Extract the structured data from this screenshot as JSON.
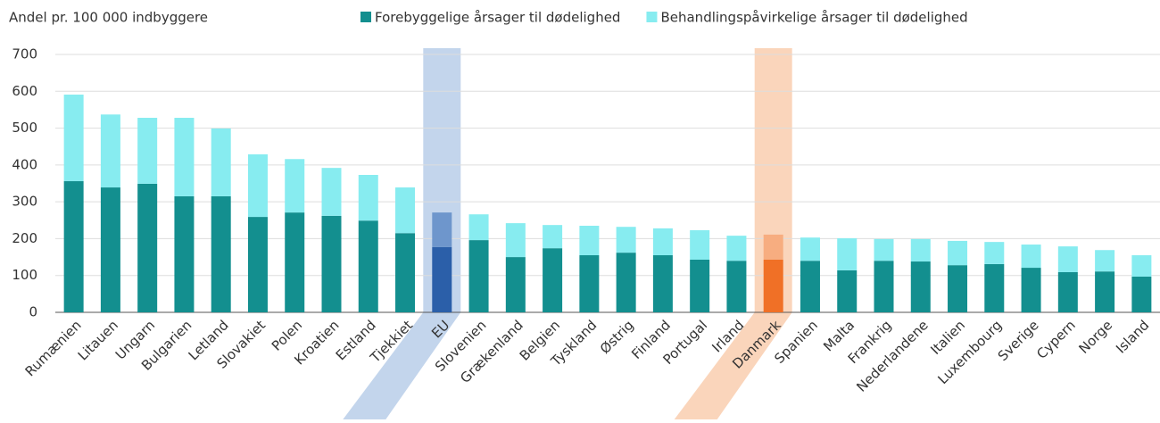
{
  "chart_data": {
    "type": "stacked-bar",
    "y_label": "Andel pr. 100 000 indbyggere",
    "categories": [
      "Rumænien",
      "Litauen",
      "Ungarn",
      "Bulgarien",
      "Letland",
      "Slovakiet",
      "Polen",
      "Kroatien",
      "Estland",
      "Tjekkiet",
      "EU",
      "Slovenien",
      "Grækenland",
      "Belgien",
      "Tyskland",
      "Østrig",
      "Finland",
      "Portugal",
      "Irland",
      "Danmark",
      "Spanien",
      "Malta",
      "Frankrig",
      "Nederlandene",
      "Italien",
      "Luxembourg",
      "Sverige",
      "Cypern",
      "Norge",
      "Island"
    ],
    "series": [
      {
        "name": "Forebyggelige årsager til dødelighed",
        "color": "#138f8f",
        "values": [
          356,
          339,
          349,
          315,
          315,
          259,
          271,
          262,
          249,
          215,
          177,
          196,
          150,
          174,
          155,
          162,
          155,
          143,
          140,
          143,
          140,
          114,
          140,
          138,
          128,
          131,
          121,
          109,
          111,
          97
        ]
      },
      {
        "name": "Behandlingspåvirkelige årsager til dødelighed",
        "color": "#87ecf0",
        "values": [
          235,
          198,
          179,
          213,
          184,
          170,
          145,
          130,
          124,
          124,
          94,
          70,
          92,
          63,
          80,
          70,
          73,
          80,
          68,
          68,
          63,
          87,
          59,
          61,
          66,
          60,
          63,
          70,
          58,
          58
        ]
      }
    ],
    "highlights": [
      {
        "index": 10,
        "colors": [
          "#2b5fa9",
          "#6e96cc"
        ],
        "band_color": "#c3d5ec"
      },
      {
        "index": 19,
        "colors": [
          "#f07026",
          "#f7ad80"
        ],
        "band_color": "#fad5bb"
      }
    ],
    "ylim": [
      0,
      700
    ],
    "yticks": [
      0,
      100,
      200,
      300,
      400,
      500,
      600,
      700
    ],
    "grid": true,
    "legend": "top"
  }
}
